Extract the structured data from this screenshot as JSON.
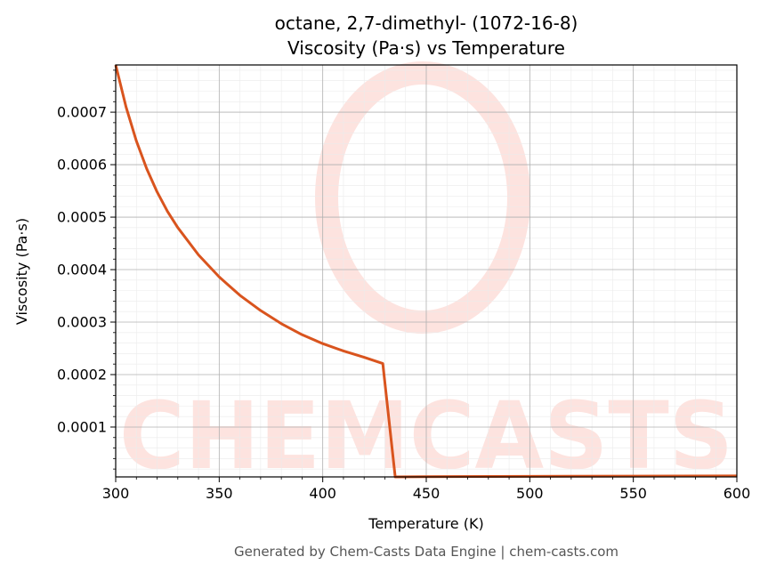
{
  "chart_data": {
    "type": "line",
    "title": "octane, 2,7-dimethyl- (1072-16-8)",
    "subtitle": "Viscosity (Pa·s) vs Temperature",
    "xlabel": "Temperature (K)",
    "ylabel": "Viscosity (Pa·s)",
    "xlim": [
      300,
      600
    ],
    "ylim": [
      5e-06,
      0.00079
    ],
    "x_ticks": [
      300,
      350,
      400,
      450,
      500,
      550,
      600
    ],
    "y_ticks": [
      0.0001,
      0.0002,
      0.0003,
      0.0004,
      0.0005,
      0.0006,
      0.0007
    ],
    "x_tick_labels": [
      "300",
      "350",
      "400",
      "450",
      "500",
      "550",
      "600"
    ],
    "y_tick_labels": [
      "0.0001",
      "0.0002",
      "0.0003",
      "0.0004",
      "0.0005",
      "0.0006",
      "0.0007"
    ],
    "grid": true,
    "line_color": "#d9541e",
    "series": [
      {
        "x": [
          300,
          305,
          310,
          315,
          320,
          325,
          330,
          340,
          350,
          360,
          370,
          380,
          390,
          400,
          410,
          420,
          429,
          435,
          450,
          500,
          550,
          600
        ],
        "values": [
          0.00079,
          0.00071,
          0.000645,
          0.000592,
          0.000548,
          0.000511,
          0.00048,
          0.000428,
          0.000386,
          0.000351,
          0.000322,
          0.000297,
          0.000276,
          0.000259,
          0.000245,
          0.000233,
          0.000221,
          5e-06,
          5.5e-06,
          6e-06,
          6.5e-06,
          7e-06
        ]
      }
    ]
  },
  "watermark": {
    "text": "CHEMCASTS",
    "color": "#fde3df"
  },
  "footer": "Generated by Chem-Casts Data Engine | chem-casts.com"
}
